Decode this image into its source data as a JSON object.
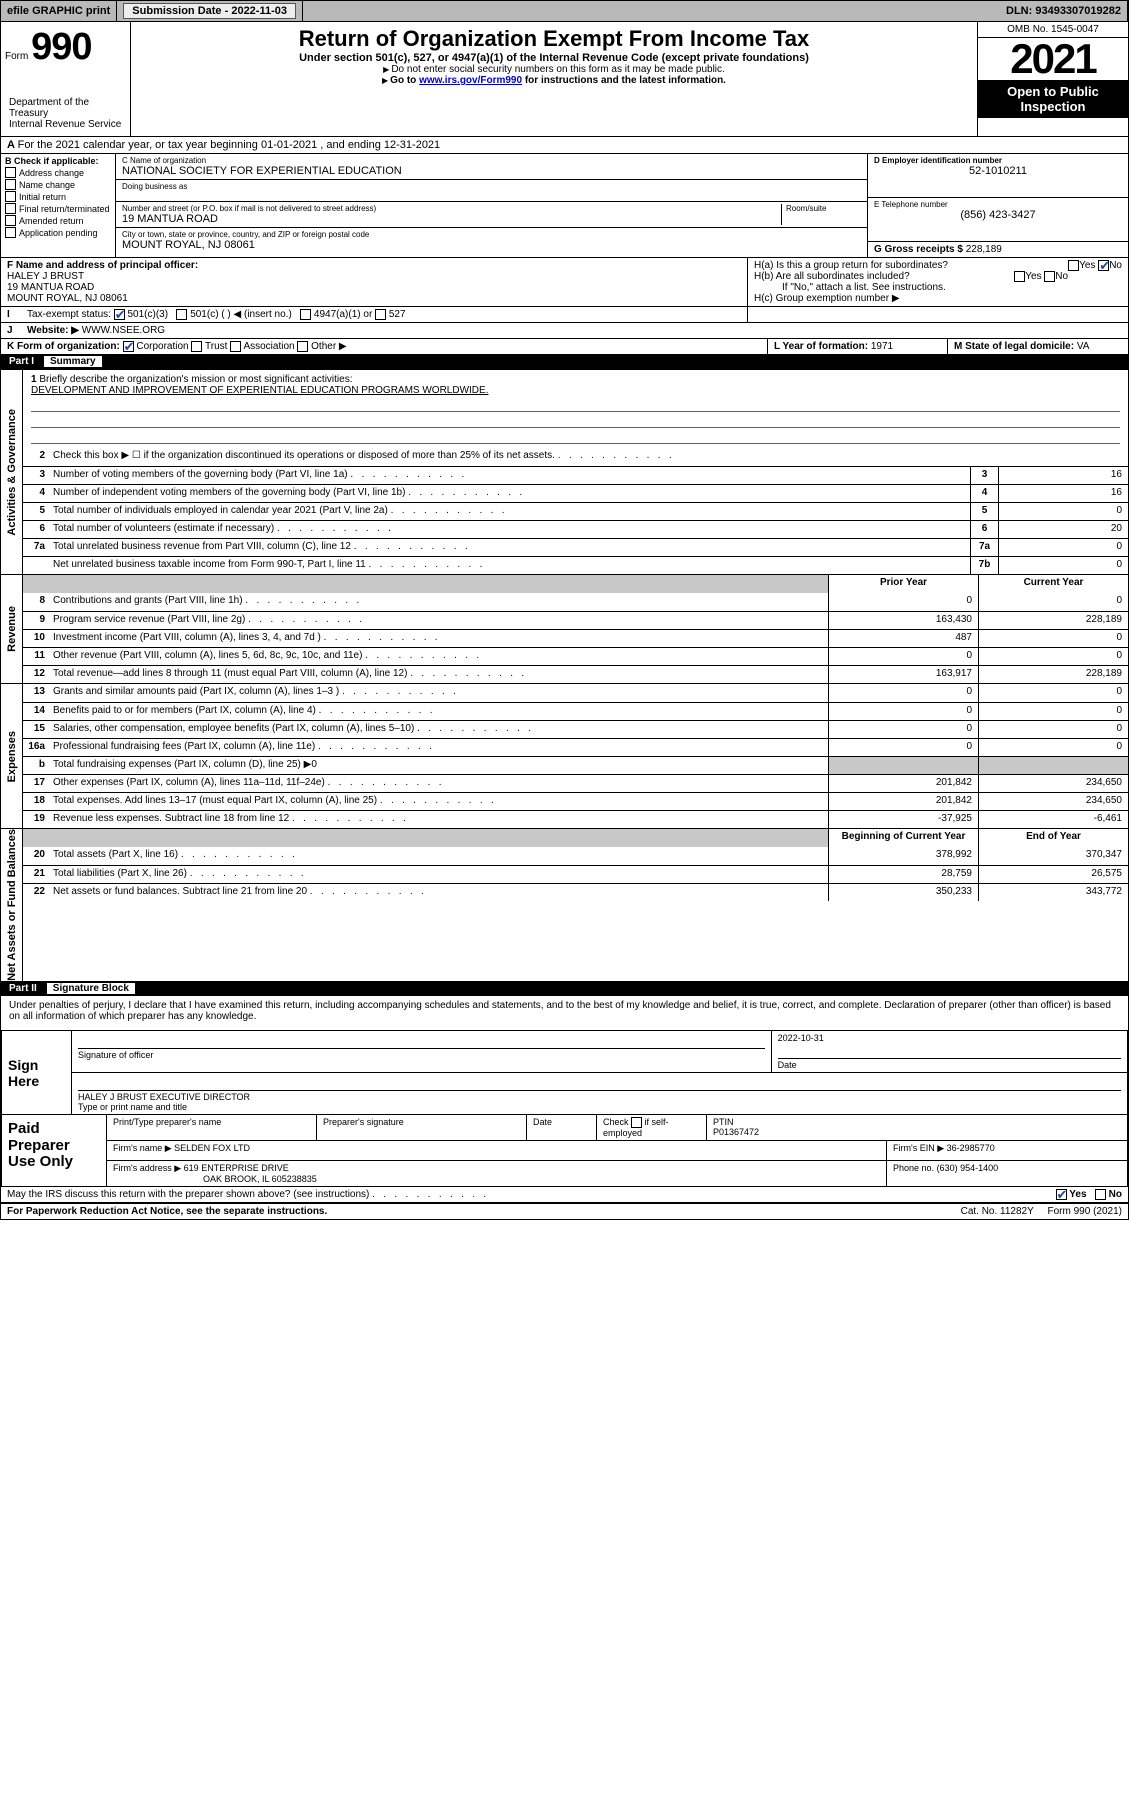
{
  "topbar": {
    "efile": "efile GRAPHIC print",
    "subdate_label": "Submission Date - ",
    "subdate": "2022-11-03",
    "dln_label": "DLN: ",
    "dln": "93493307019282"
  },
  "header": {
    "form_word": "Form",
    "form_no": "990",
    "title": "Return of Organization Exempt From Income Tax",
    "subtitle": "Under section 501(c), 527, or 4947(a)(1) of the Internal Revenue Code (except private foundations)",
    "note1": "Do not enter social security numbers on this form as it may be made public.",
    "note2_pre": "Go to ",
    "note2_link": "www.irs.gov/Form990",
    "note2_post": " for instructions and the latest information.",
    "omb": "OMB No. 1545-0047",
    "year": "2021",
    "open": "Open to Public Inspection",
    "dept": "Department of the Treasury",
    "irs": "Internal Revenue Service"
  },
  "row_a": "For the 2021 calendar year, or tax year beginning 01-01-2021   , and ending 12-31-2021",
  "box_b": {
    "label": "B Check if applicable:",
    "items": [
      "Address change",
      "Name change",
      "Initial return",
      "Final return/terminated",
      "Amended return",
      "Application pending"
    ]
  },
  "box_c": {
    "name_label": "C Name of organization",
    "name": "NATIONAL SOCIETY FOR EXPERIENTIAL EDUCATION",
    "dba_label": "Doing business as",
    "addr_label": "Number and street (or P.O. box if mail is not delivered to street address)",
    "room_label": "Room/suite",
    "addr": "19 MANTUA ROAD",
    "city_label": "City or town, state or province, country, and ZIP or foreign postal code",
    "city": "MOUNT ROYAL, NJ  08061"
  },
  "box_d": {
    "label": "D Employer identification number",
    "val": "52-1010211"
  },
  "box_e": {
    "label": "E Telephone number",
    "val": "(856) 423-3427"
  },
  "box_g": {
    "label": "G Gross receipts $",
    "val": "228,189"
  },
  "box_f": {
    "label": "F  Name and address of principal officer:",
    "name": "HALEY J BRUST",
    "addr1": "19 MANTUA ROAD",
    "addr2": "MOUNT ROYAL, NJ  08061"
  },
  "box_h": {
    "a": "H(a)  Is this a group return for subordinates?",
    "b": "H(b)  Are all subordinates included?",
    "note": "If \"No,\" attach a list. See instructions.",
    "c": "H(c)  Group exemption number ▶",
    "yes": "Yes",
    "no": "No"
  },
  "row_i": {
    "label": "Tax-exempt status:",
    "o1": "501(c)(3)",
    "o2": "501(c) (  ) ◀ (insert no.)",
    "o3": "4947(a)(1) or",
    "o4": "527"
  },
  "row_j": {
    "label": "Website: ▶",
    "val": "WWW.NSEE.ORG"
  },
  "row_k": {
    "label": "K Form of organization:",
    "o1": "Corporation",
    "o2": "Trust",
    "o3": "Association",
    "o4": "Other ▶"
  },
  "row_l": {
    "label": "L Year of formation:",
    "val": "1971"
  },
  "row_m": {
    "label": "M State of legal domicile:",
    "val": "VA"
  },
  "part1": {
    "tag": "Part I",
    "title": "Summary"
  },
  "mission": {
    "q": "Briefly describe the organization's mission or most significant activities:",
    "text": "DEVELOPMENT AND IMPROVEMENT OF EXPERIENTIAL EDUCATION PROGRAMS WORLDWIDE."
  },
  "sidebar": {
    "gov": "Activities & Governance",
    "rev": "Revenue",
    "exp": "Expenses",
    "net": "Net Assets or Fund Balances"
  },
  "lines_top": [
    {
      "n": "2",
      "d": "Check this box ▶ ☐  if the organization discontinued its operations or disposed of more than 25% of its net assets."
    },
    {
      "n": "3",
      "d": "Number of voting members of the governing body (Part VI, line 1a)",
      "box": "3",
      "val": "16"
    },
    {
      "n": "4",
      "d": "Number of independent voting members of the governing body (Part VI, line 1b)",
      "box": "4",
      "val": "16"
    },
    {
      "n": "5",
      "d": "Total number of individuals employed in calendar year 2021 (Part V, line 2a)",
      "box": "5",
      "val": "0"
    },
    {
      "n": "6",
      "d": "Total number of volunteers (estimate if necessary)",
      "box": "6",
      "val": "20"
    },
    {
      "n": "7a",
      "d": "Total unrelated business revenue from Part VIII, column (C), line 12",
      "box": "7a",
      "val": "0"
    },
    {
      "n": "",
      "d": "Net unrelated business taxable income from Form 990-T, Part I, line 11",
      "box": "7b",
      "val": "0"
    }
  ],
  "colheads": {
    "prior": "Prior Year",
    "current": "Current Year",
    "boy": "Beginning of Current Year",
    "eoy": "End of Year"
  },
  "rev": [
    {
      "n": "8",
      "d": "Contributions and grants (Part VIII, line 1h)",
      "p": "0",
      "c": "0"
    },
    {
      "n": "9",
      "d": "Program service revenue (Part VIII, line 2g)",
      "p": "163,430",
      "c": "228,189"
    },
    {
      "n": "10",
      "d": "Investment income (Part VIII, column (A), lines 3, 4, and 7d )",
      "p": "487",
      "c": "0"
    },
    {
      "n": "11",
      "d": "Other revenue (Part VIII, column (A), lines 5, 6d, 8c, 9c, 10c, and 11e)",
      "p": "0",
      "c": "0"
    },
    {
      "n": "12",
      "d": "Total revenue—add lines 8 through 11 (must equal Part VIII, column (A), line 12)",
      "p": "163,917",
      "c": "228,189"
    }
  ],
  "exp": [
    {
      "n": "13",
      "d": "Grants and similar amounts paid (Part IX, column (A), lines 1–3 )",
      "p": "0",
      "c": "0"
    },
    {
      "n": "14",
      "d": "Benefits paid to or for members (Part IX, column (A), line 4)",
      "p": "0",
      "c": "0"
    },
    {
      "n": "15",
      "d": "Salaries, other compensation, employee benefits (Part IX, column (A), lines 5–10)",
      "p": "0",
      "c": "0"
    },
    {
      "n": "16a",
      "d": "Professional fundraising fees (Part IX, column (A), line 11e)",
      "p": "0",
      "c": "0"
    },
    {
      "n": "b",
      "d": "Total fundraising expenses (Part IX, column (D), line 25) ▶0",
      "shade": true
    },
    {
      "n": "17",
      "d": "Other expenses (Part IX, column (A), lines 11a–11d, 11f–24e)",
      "p": "201,842",
      "c": "234,650"
    },
    {
      "n": "18",
      "d": "Total expenses. Add lines 13–17 (must equal Part IX, column (A), line 25)",
      "p": "201,842",
      "c": "234,650"
    },
    {
      "n": "19",
      "d": "Revenue less expenses. Subtract line 18 from line 12",
      "p": "-37,925",
      "c": "-6,461"
    }
  ],
  "net": [
    {
      "n": "20",
      "d": "Total assets (Part X, line 16)",
      "p": "378,992",
      "c": "370,347"
    },
    {
      "n": "21",
      "d": "Total liabilities (Part X, line 26)",
      "p": "28,759",
      "c": "26,575"
    },
    {
      "n": "22",
      "d": "Net assets or fund balances. Subtract line 21 from line 20",
      "p": "350,233",
      "c": "343,772"
    }
  ],
  "part2": {
    "tag": "Part II",
    "title": "Signature Block"
  },
  "jurat": "Under penalties of perjury, I declare that I have examined this return, including accompanying schedules and statements, and to the best of my knowledge and belief, it is true, correct, and complete. Declaration of preparer (other than officer) is based on all information of which preparer has any knowledge.",
  "sign": {
    "here": "Sign Here",
    "sig_label": "Signature of officer",
    "date_label": "Date",
    "date": "2022-10-31",
    "typed": "HALEY J BRUST  EXECUTIVE DIRECTOR",
    "typed_label": "Type or print name and title"
  },
  "prep": {
    "left": "Paid Preparer Use Only",
    "h1": "Print/Type preparer's name",
    "h2": "Preparer's signature",
    "h3": "Date",
    "h4_pre": "Check",
    "h4_post": "if self-employed",
    "ptin_label": "PTIN",
    "ptin": "P01367472",
    "firm_label": "Firm's name   ▶",
    "firm": "SELDEN FOX LTD",
    "ein_label": "Firm's EIN ▶",
    "ein": "36-2985770",
    "addr_label": "Firm's address ▶",
    "addr1": "619 ENTERPRISE DRIVE",
    "addr2": "OAK BROOK, IL  605238835",
    "phone_label": "Phone no.",
    "phone": "(630) 954-1400"
  },
  "discuss": "May the IRS discuss this return with the preparer shown above? (see instructions)",
  "footer": {
    "pra": "For Paperwork Reduction Act Notice, see the separate instructions.",
    "cat": "Cat. No. 11282Y",
    "form": "Form 990 (2021)"
  }
}
